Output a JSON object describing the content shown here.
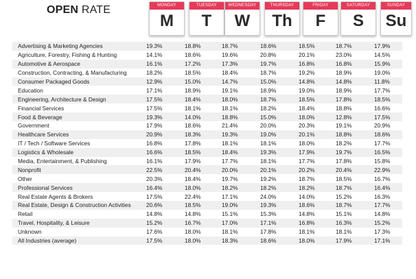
{
  "header": {
    "title_bold": "OPEN",
    "title_light": "RATE"
  },
  "days": [
    {
      "name": "MONDAY",
      "abbr": "M"
    },
    {
      "name": "TUESDAY",
      "abbr": "T"
    },
    {
      "name": "WEDNESDAY",
      "abbr": "W"
    },
    {
      "name": "THURSDAY",
      "abbr": "Th"
    },
    {
      "name": "FRIDAY",
      "abbr": "F"
    },
    {
      "name": "SATURDAY",
      "abbr": "S"
    },
    {
      "name": "SUNDAY",
      "abbr": "Su"
    }
  ],
  "colors": {
    "accent": "#e63a5a",
    "stripe": "#efefef"
  },
  "rows": [
    {
      "industry": "Advertising & Marketing Agencies",
      "values": [
        "19.3%",
        "18.8%",
        "18.7%",
        "18.6%",
        "18.5%",
        "18.7%",
        "17.9%"
      ]
    },
    {
      "industry": "Agriculture, Forestry, Fishing & Hunting",
      "values": [
        "14.1%",
        "18.6%",
        "19.6%",
        "20.8%",
        "20.1%",
        "23.0%",
        "14.5%"
      ]
    },
    {
      "industry": "Automotive & Aerospace",
      "values": [
        "16.1%",
        "17.2%",
        "17.3%",
        "19.7%",
        "16.8%",
        "16.8%",
        "15.9%"
      ]
    },
    {
      "industry": "Construction, Contracting, & Manufacturing",
      "values": [
        "18.2%",
        "18.5%",
        "18.4%",
        "18.7%",
        "19.2%",
        "18.9%",
        "19.0%"
      ]
    },
    {
      "industry": "Consumer Packaged Goods",
      "values": [
        "12.9%",
        "15.0%",
        "14.7%",
        "15.0%",
        "14.8%",
        "14.8%",
        "11.8%"
      ]
    },
    {
      "industry": "Education",
      "values": [
        "17.1%",
        "18.9%",
        "19.1%",
        "18.9%",
        "19.0%",
        "18.9%",
        "17.7%"
      ]
    },
    {
      "industry": "Engineering, Architecture & Design",
      "values": [
        "17.5%",
        "18.4%",
        "18.0%",
        "18.7%",
        "18.5%",
        "17.8%",
        "18.5%"
      ]
    },
    {
      "industry": "Financial Services",
      "values": [
        "17.5%",
        "18.1%",
        "18.1%",
        "18.2%",
        "18.4%",
        "18.8%",
        "16.6%"
      ]
    },
    {
      "industry": "Food & Beverage",
      "values": [
        "19.3%",
        "14.0%",
        "18.8%",
        "15.0%",
        "18.0%",
        "12.8%",
        "17.5%"
      ]
    },
    {
      "industry": "Government",
      "values": [
        "17.9%",
        "18.6%",
        "21.4%",
        "20.0%",
        "20.3%",
        "19.1%",
        "20.9%"
      ]
    },
    {
      "industry": "Healthcare Services",
      "values": [
        "20.9%",
        "18.3%",
        "19.3%",
        "19.0%",
        "20.1%",
        "18.8%",
        "18.6%"
      ]
    },
    {
      "industry": "IT / Tech / Software Services",
      "values": [
        "16.8%",
        "17.8%",
        "18.1%",
        "18.1%",
        "18.0%",
        "18.2%",
        "17.7%"
      ]
    },
    {
      "industry": "Logistics & Wholesale",
      "values": [
        "16.6%",
        "18.5%",
        "18.4%",
        "19.3%",
        "17.9%",
        "19.7%",
        "16.5%"
      ]
    },
    {
      "industry": "Media, Entertainment, & Publishing",
      "values": [
        "16.1%",
        "17.9%",
        "17.7%",
        "18.1%",
        "17.7%",
        "17.8%",
        "15.8%"
      ]
    },
    {
      "industry": "Nonprofit",
      "values": [
        "22.5%",
        "20.4%",
        "20.0%",
        "20.1%",
        "20.2%",
        "20.4%",
        "22.9%"
      ]
    },
    {
      "industry": "Other",
      "values": [
        "20.3%",
        "18.4%",
        "19.7%",
        "19.2%",
        "18.7%",
        "18.5%",
        "16.7%"
      ]
    },
    {
      "industry": "Professional Services",
      "values": [
        "16.4%",
        "18.0%",
        "18.2%",
        "18.2%",
        "18.2%",
        "18.7%",
        "16.4%"
      ]
    },
    {
      "industry": "Real Estate Agents & Brokers",
      "values": [
        "17.5%",
        "22.4%",
        "17.1%",
        "24.0%",
        "14.0%",
        "15.2%",
        "16.3%"
      ]
    },
    {
      "industry": "Real Estate, Design & Construction Activities",
      "values": [
        "20.6%",
        "18.5%",
        "19.0%",
        "19.3%",
        "18.6%",
        "18.7%",
        "17.7%"
      ]
    },
    {
      "industry": "Retail",
      "values": [
        "14.8%",
        "14.8%",
        "15.1%",
        "15.3%",
        "14.8%",
        "15.1%",
        "14.8%"
      ]
    },
    {
      "industry": "Travel, Hospitality, & Leisure",
      "values": [
        "15.2%",
        "16.7%",
        "17.0%",
        "17.1%",
        "16.8%",
        "16.3%",
        "15.2%"
      ]
    },
    {
      "industry": "Unknown",
      "values": [
        "17.6%",
        "18.0%",
        "18.1%",
        "17.8%",
        "18.1%",
        "18.1%",
        "17.3%"
      ]
    },
    {
      "industry": "All Industries (average)",
      "values": [
        "17.5%",
        "18.0%",
        "18.3%",
        "18.6%",
        "18.0%",
        "17.9%",
        "17.1%"
      ]
    }
  ]
}
